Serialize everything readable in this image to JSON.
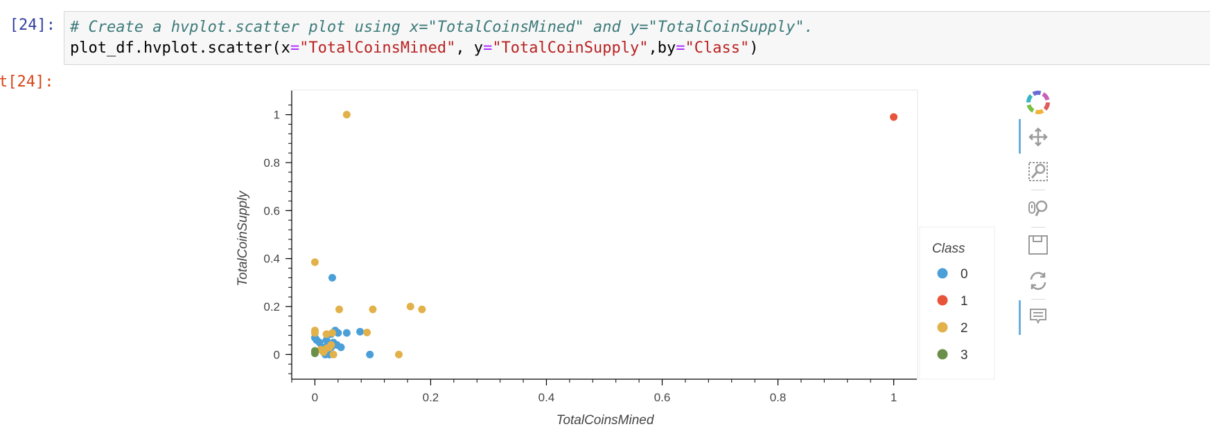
{
  "cell": {
    "in_prompt": "[24]:",
    "out_prompt": "t[24]:",
    "comment": "# Create a hvplot.scatter plot using x=\"TotalCoinsMined\" and y=\"TotalCoinSupply\".",
    "code": {
      "obj": "plot_df.hvplot.scatter(x",
      "eq1": "=",
      "s1": "\"TotalCoinsMined\"",
      "c2": ", y",
      "eq2": "=",
      "s2": "\"TotalCoinSupply\"",
      "c3": ",by",
      "eq3": "=",
      "s3": "\"Class\"",
      "close": ")"
    }
  },
  "toolbar": {
    "tools": [
      "bokeh-logo-icon",
      "pan-icon",
      "box-zoom-icon",
      "wheel-zoom-icon",
      "save-icon",
      "reset-icon",
      "hover-icon"
    ]
  },
  "chart_data": {
    "type": "scatter",
    "xlabel": "TotalCoinsMined",
    "ylabel": "TotalCoinSupply",
    "xlim": [
      -0.04,
      1.04
    ],
    "ylim": [
      -0.1,
      1.1
    ],
    "xticks": [
      "0",
      "0.2",
      "0.4",
      "0.6",
      "0.8",
      "1"
    ],
    "yticks": [
      "0",
      "0.2",
      "0.4",
      "0.6",
      "0.8",
      "1"
    ],
    "grid": false,
    "legend_title": "Class",
    "legend_position": "right",
    "series": [
      {
        "name": "0",
        "color": "#4a9fd8",
        "points": [
          [
            0.0,
            0.07
          ],
          [
            0.003,
            0.06
          ],
          [
            0.008,
            0.05
          ],
          [
            0.012,
            0.03
          ],
          [
            0.015,
            0.01
          ],
          [
            0.018,
            0.0
          ],
          [
            0.022,
            0.04
          ],
          [
            0.025,
            0.0
          ],
          [
            0.028,
            0.03
          ],
          [
            0.03,
            0.32
          ],
          [
            0.032,
            0.05
          ],
          [
            0.035,
            0.1
          ],
          [
            0.04,
            0.09
          ],
          [
            0.045,
            0.03
          ],
          [
            0.055,
            0.09
          ],
          [
            0.078,
            0.095
          ],
          [
            0.095,
            0.0
          ],
          [
            0.01,
            0.02
          ],
          [
            0.02,
            0.06
          ],
          [
            0.038,
            0.04
          ],
          [
            0.028,
            0.085
          ]
        ]
      },
      {
        "name": "1",
        "color": "#e8543a",
        "points": [
          [
            1.0,
            0.99
          ]
        ]
      },
      {
        "name": "2",
        "color": "#e2b14a",
        "points": [
          [
            0.055,
            1.0
          ],
          [
            0.0,
            0.385
          ],
          [
            0.042,
            0.188
          ],
          [
            0.1,
            0.188
          ],
          [
            0.165,
            0.2
          ],
          [
            0.185,
            0.188
          ],
          [
            0.0,
            0.1
          ],
          [
            0.0,
            0.09
          ],
          [
            0.02,
            0.085
          ],
          [
            0.03,
            0.09
          ],
          [
            0.09,
            0.092
          ],
          [
            0.145,
            0.0
          ],
          [
            0.032,
            0.0
          ],
          [
            0.01,
            0.02
          ],
          [
            0.02,
            0.025
          ],
          [
            0.025,
            0.03
          ],
          [
            0.015,
            0.01
          ],
          [
            0.028,
            0.04
          ]
        ]
      },
      {
        "name": "3",
        "color": "#6b8f4a",
        "points": [
          [
            0.0,
            0.005
          ],
          [
            0.0,
            0.015
          ]
        ]
      }
    ]
  }
}
